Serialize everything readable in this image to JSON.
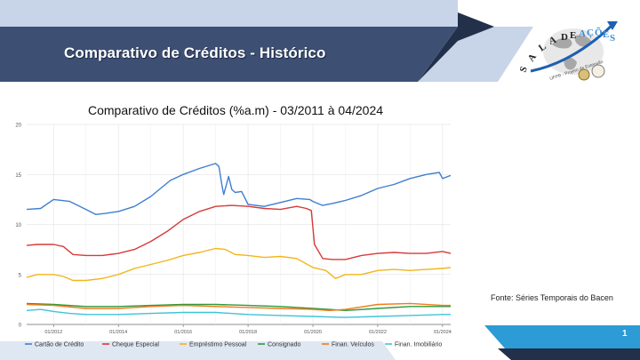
{
  "slide": {
    "title": "Comparativo de Créditos - Histórico",
    "source": "Fonte: Séries Temporais do Bacen",
    "page_number": "1",
    "colors": {
      "banner": "#3d4f73",
      "accent": "#2c9bd6",
      "dark": "#22304a",
      "light": "#c8d5e8"
    }
  },
  "logo": {
    "text": "SALA DE AÇÕES",
    "subtext": "UFPB - Projeto de Extensão"
  },
  "chart_data": {
    "type": "line",
    "title": "Comparativo de Créditos (%a.m) - 03/2011 à 04/2024",
    "xlabel": "",
    "ylabel": "",
    "xlim": [
      2011.17,
      2024.25
    ],
    "ylim": [
      0,
      20
    ],
    "yticks": [
      0,
      5,
      10,
      15,
      20
    ],
    "xticks": [
      {
        "value": 2012,
        "label": "01/2012"
      },
      {
        "value": 2014,
        "label": "01/2014"
      },
      {
        "value": 2016,
        "label": "01/2016"
      },
      {
        "value": 2018,
        "label": "01/2018"
      },
      {
        "value": 2020,
        "label": "01/2020"
      },
      {
        "value": 2022,
        "label": "01/2022"
      },
      {
        "value": 2024,
        "label": "01/2024"
      }
    ],
    "grid": true,
    "legend_position": "bottom",
    "series": [
      {
        "name": "Cartão de Crédito",
        "color": "#3d7fd0",
        "x": [
          2011.17,
          2011.6,
          2012.0,
          2012.5,
          2013.0,
          2013.3,
          2013.6,
          2014.0,
          2014.5,
          2015.0,
          2015.3,
          2015.6,
          2016.0,
          2016.5,
          2016.9,
          2017.0,
          2017.1,
          2017.2,
          2017.25,
          2017.4,
          2017.5,
          2017.6,
          2017.8,
          2018.0,
          2018.5,
          2019.0,
          2019.5,
          2019.9,
          2020.0,
          2020.3,
          2020.6,
          2021.0,
          2021.5,
          2022.0,
          2022.5,
          2023.0,
          2023.5,
          2023.9,
          2024.0,
          2024.25
        ],
        "y": [
          11.5,
          11.6,
          12.5,
          12.3,
          11.5,
          11.0,
          11.1,
          11.3,
          11.8,
          12.8,
          13.6,
          14.4,
          15.0,
          15.6,
          16.0,
          16.1,
          15.8,
          13.8,
          13.0,
          14.8,
          13.5,
          13.2,
          13.3,
          12.0,
          11.8,
          12.2,
          12.6,
          12.5,
          12.3,
          11.9,
          12.1,
          12.4,
          12.9,
          13.6,
          14.0,
          14.6,
          15.0,
          15.2,
          14.6,
          14.9
        ]
      },
      {
        "name": "Cheque Especial",
        "color": "#d63a3a",
        "x": [
          2011.17,
          2011.5,
          2012.0,
          2012.3,
          2012.6,
          2013.0,
          2013.5,
          2014.0,
          2014.5,
          2015.0,
          2015.5,
          2016.0,
          2016.5,
          2017.0,
          2017.5,
          2018.0,
          2018.5,
          2019.0,
          2019.5,
          2019.8,
          2019.95,
          2020.05,
          2020.3,
          2020.6,
          2021.0,
          2021.5,
          2022.0,
          2022.5,
          2023.0,
          2023.5,
          2024.0,
          2024.25
        ],
        "y": [
          7.9,
          8.0,
          8.0,
          7.8,
          7.0,
          6.9,
          6.9,
          7.1,
          7.5,
          8.3,
          9.3,
          10.5,
          11.3,
          11.8,
          11.9,
          11.8,
          11.6,
          11.5,
          11.8,
          11.6,
          11.4,
          8.0,
          6.6,
          6.5,
          6.5,
          6.9,
          7.1,
          7.2,
          7.1,
          7.1,
          7.3,
          7.1
        ]
      },
      {
        "name": "Empréstimo Pessoal",
        "color": "#f2b51c",
        "x": [
          2011.17,
          2011.5,
          2012.0,
          2012.3,
          2012.6,
          2013.0,
          2013.5,
          2014.0,
          2014.5,
          2015.0,
          2015.5,
          2016.0,
          2016.5,
          2017.0,
          2017.3,
          2017.6,
          2018.0,
          2018.5,
          2019.0,
          2019.5,
          2020.0,
          2020.4,
          2020.7,
          2021.0,
          2021.5,
          2022.0,
          2022.5,
          2023.0,
          2023.5,
          2024.0,
          2024.25
        ],
        "y": [
          4.7,
          5.0,
          5.0,
          4.8,
          4.4,
          4.4,
          4.6,
          5.0,
          5.6,
          6.0,
          6.4,
          6.9,
          7.2,
          7.6,
          7.5,
          7.0,
          6.9,
          6.7,
          6.8,
          6.6,
          5.7,
          5.4,
          4.6,
          5.0,
          5.0,
          5.4,
          5.5,
          5.4,
          5.5,
          5.6,
          5.7
        ]
      },
      {
        "name": "Consignado",
        "color": "#2e9a3c",
        "x": [
          2011.17,
          2012.0,
          2013.0,
          2014.0,
          2015.0,
          2016.0,
          2017.0,
          2018.0,
          2019.0,
          2020.0,
          2020.5,
          2021.0,
          2022.0,
          2023.0,
          2024.0,
          2024.25
        ],
        "y": [
          2.1,
          2.0,
          1.8,
          1.8,
          1.9,
          2.0,
          2.0,
          1.9,
          1.8,
          1.6,
          1.5,
          1.4,
          1.6,
          1.8,
          1.8,
          1.8
        ]
      },
      {
        "name": "Finan. Veículos",
        "color": "#f07c1c",
        "x": [
          2011.17,
          2012.0,
          2013.0,
          2014.0,
          2015.0,
          2016.0,
          2017.0,
          2018.0,
          2019.0,
          2020.0,
          2020.5,
          2021.0,
          2022.0,
          2023.0,
          2024.0,
          2024.25
        ],
        "y": [
          2.0,
          1.9,
          1.6,
          1.6,
          1.8,
          1.9,
          1.8,
          1.7,
          1.6,
          1.5,
          1.4,
          1.5,
          2.0,
          2.1,
          1.9,
          1.9
        ]
      },
      {
        "name": "Finan. Imobiliário",
        "color": "#3fc3d8",
        "x": [
          2011.17,
          2011.6,
          2012.0,
          2012.5,
          2013.0,
          2014.0,
          2015.0,
          2016.0,
          2017.0,
          2018.0,
          2019.0,
          2020.0,
          2021.0,
          2022.0,
          2023.0,
          2024.0,
          2024.25
        ],
        "y": [
          1.4,
          1.5,
          1.3,
          1.1,
          1.0,
          1.0,
          1.1,
          1.2,
          1.2,
          1.0,
          0.9,
          0.8,
          0.7,
          0.8,
          0.9,
          1.0,
          1.0
        ]
      }
    ]
  }
}
